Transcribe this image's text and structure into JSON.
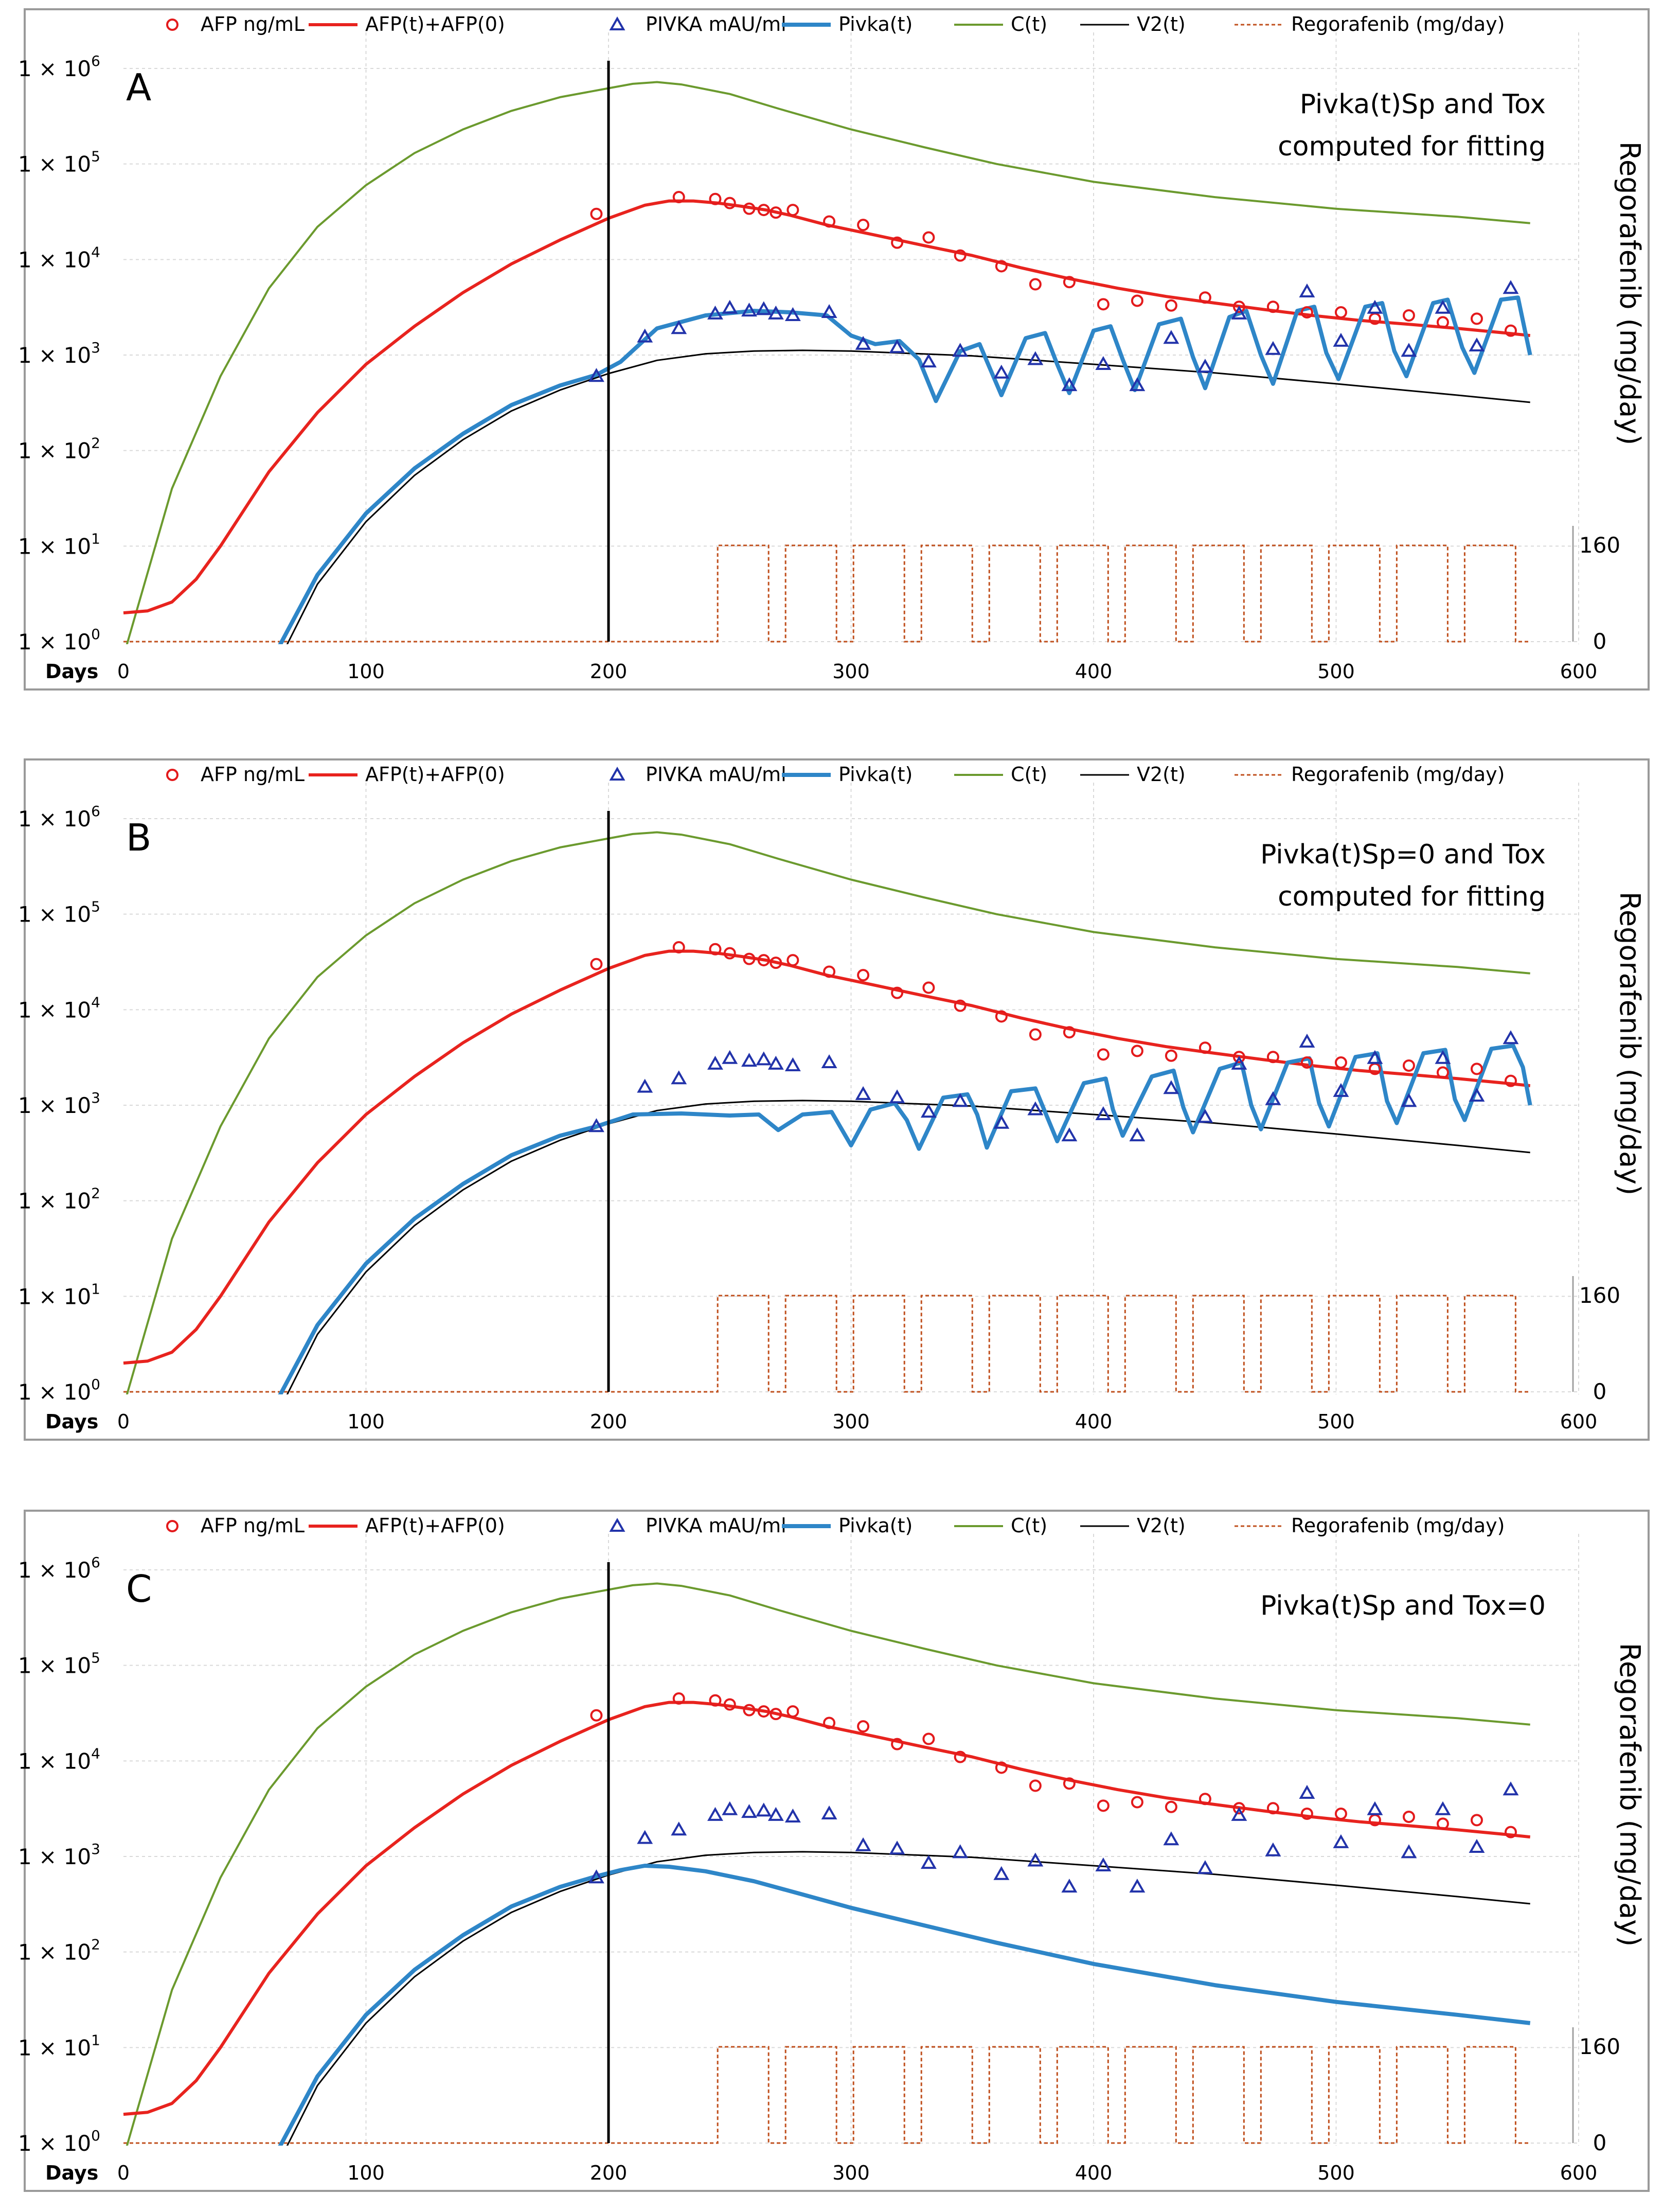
{
  "colors": {
    "afp_obs": "#e31a1c",
    "afp_fit": "#e8231e",
    "pivka_obs": "#2233aa",
    "pivka_fit": "#2e86c8",
    "C": "#6b9a2e",
    "V2": "#000000",
    "regorafenib": "#c0501e"
  },
  "chart_data": [
    {
      "panel": "A",
      "type": "line",
      "annotation": [
        "Pivka(t)Sp and Tox",
        "computed for fitting"
      ],
      "xlabel": "Days",
      "xlim": [
        0,
        600
      ],
      "xticks": [
        "0",
        "100",
        "200",
        "300",
        "400",
        "500",
        "600"
      ],
      "ylim_log": [
        1,
        1000000
      ],
      "yticks": [
        "1 × 10",
        "1 × 10",
        "1 × 10",
        "1 × 10",
        "1 × 10",
        "1 × 10",
        "1 × 10"
      ],
      "ytick_exponents": [
        "0",
        "1",
        "2",
        "3",
        "4",
        "5",
        "6"
      ],
      "y2label": "Regorafenib (mg/day)",
      "y2ticks": [
        "0",
        "160"
      ],
      "treatment_start_day": 200,
      "legend": [
        "AFP ng/mL",
        "AFP(t)+AFP(0)",
        "PIVKA mAU/ml",
        "Pivka(t)",
        "C(t)",
        "V2(t)",
        "Regorafenib (mg/day)"
      ],
      "series": {
        "afp_obs": {
          "x": [
            195,
            229,
            244,
            250,
            258,
            264,
            269,
            276,
            291,
            305,
            319,
            332,
            345,
            362,
            376,
            390,
            404,
            418,
            432,
            446,
            460,
            474,
            488,
            502,
            516,
            530,
            544,
            558,
            572
          ],
          "y": [
            30000,
            45000,
            43000,
            39000,
            34000,
            33000,
            31000,
            33000,
            25000,
            23000,
            15000,
            17000,
            11000,
            8500,
            5500,
            5800,
            3400,
            3700,
            3300,
            4000,
            3200,
            3200,
            2800,
            2800,
            2400,
            2600,
            2200,
            2400,
            1800
          ]
        },
        "afp_fit": {
          "x": [
            0,
            10,
            20,
            30,
            40,
            60,
            80,
            100,
            120,
            140,
            160,
            180,
            200,
            215,
            225,
            235,
            245,
            255,
            265,
            275,
            290,
            310,
            330,
            350,
            370,
            390,
            410,
            430,
            450,
            470,
            490,
            510,
            530,
            550,
            570,
            580
          ],
          "y": [
            2,
            2.1,
            2.6,
            4.5,
            10,
            60,
            250,
            800,
            2000,
            4500,
            9000,
            16000,
            27000,
            37000,
            41000,
            41000,
            39000,
            36000,
            33000,
            29000,
            23000,
            18000,
            14000,
            11000,
            8200,
            6300,
            5000,
            4100,
            3500,
            3000,
            2600,
            2300,
            2100,
            1900,
            1700,
            1600
          ]
        },
        "pivka_obs": {
          "x": [
            195,
            215,
            229,
            244,
            250,
            258,
            264,
            269,
            276,
            291
          ],
          "y": [
            600,
            1550,
            1900,
            2700,
            3100,
            2900,
            3000,
            2700,
            2600,
            2800
          ]
        },
        "pivka_obs_late_A": {
          "x": [
            305,
            319,
            332,
            345,
            362,
            376,
            390,
            404,
            418,
            432,
            446,
            460,
            474,
            488,
            502,
            516,
            530,
            544,
            558,
            572
          ],
          "y": [
            1300,
            1200,
            850,
            1100,
            650,
            900,
            480,
            800,
            480,
            1500,
            750,
            2700,
            1150,
            4600,
            1400,
            3100,
            1100,
            3100,
            1250,
            5000
          ]
        },
        "C": {
          "x": [
            0,
            20,
            40,
            60,
            80,
            100,
            120,
            140,
            160,
            180,
            200,
            210,
            220,
            230,
            250,
            270,
            300,
            330,
            360,
            400,
            450,
            500,
            550,
            580
          ],
          "y": [
            0.7,
            40,
            600,
            5000,
            22000,
            60000,
            130000,
            230000,
            360000,
            500000,
            620000,
            690000,
            720000,
            680000,
            540000,
            380000,
            230000,
            150000,
            100000,
            65000,
            45000,
            34000,
            28000,
            24000
          ]
        },
        "V2": {
          "x": [
            65,
            80,
            100,
            120,
            140,
            160,
            180,
            200,
            220,
            240,
            260,
            280,
            300,
            350,
            400,
            450,
            500,
            550,
            580
          ],
          "y": [
            0.7,
            4,
            18,
            55,
            130,
            260,
            430,
            640,
            880,
            1030,
            1100,
            1120,
            1100,
            980,
            800,
            650,
            500,
            380,
            320
          ]
        },
        "pivka_fit": {
          "x": [
            62,
            80,
            100,
            120,
            140,
            160,
            180,
            195,
            205,
            220,
            240,
            260,
            275,
            290,
            300,
            310,
            320,
            328,
            335,
            345,
            353,
            357,
            362,
            372,
            380,
            385,
            390,
            400,
            407,
            412,
            417,
            427,
            436,
            441,
            446,
            456,
            463,
            469,
            474,
            484,
            491,
            496,
            501,
            512,
            519,
            524,
            529,
            540,
            546,
            552,
            557,
            568,
            575,
            580
          ],
          "y": [
            0.7,
            5,
            22,
            65,
            150,
            300,
            480,
            620,
            850,
            1900,
            2600,
            2900,
            2800,
            2600,
            1600,
            1300,
            1400,
            900,
            330,
            1100,
            1300,
            750,
            380,
            1500,
            1700,
            800,
            400,
            1800,
            2000,
            900,
            430,
            2100,
            2400,
            950,
            450,
            2500,
            2900,
            1000,
            500,
            2900,
            3200,
            1050,
            560,
            3200,
            3500,
            1100,
            600,
            3500,
            3800,
            1200,
            650,
            3800,
            4000,
            1000
          ]
        },
        "regorafenib_on_periods": [
          [
            245,
            266
          ],
          [
            273,
            294
          ],
          [
            301,
            322
          ],
          [
            329,
            350
          ],
          [
            357,
            378
          ],
          [
            385,
            406
          ],
          [
            413,
            434
          ],
          [
            441,
            462
          ],
          [
            469,
            490
          ],
          [
            497,
            518
          ],
          [
            525,
            546
          ],
          [
            553,
            574
          ]
        ]
      }
    },
    {
      "panel": "B",
      "type": "line",
      "annotation": [
        "Pivka(t)Sp=0 and Tox",
        "computed for fitting"
      ],
      "xlabel": "Days",
      "xlim": [
        0,
        600
      ],
      "xticks": [
        "0",
        "100",
        "200",
        "300",
        "400",
        "500",
        "600"
      ],
      "ylim_log": [
        1,
        1000000
      ],
      "yticks": [
        "1 × 10",
        "1 × 10",
        "1 × 10",
        "1 × 10",
        "1 × 10",
        "1 × 10",
        "1 × 10"
      ],
      "ytick_exponents": [
        "0",
        "1",
        "2",
        "3",
        "4",
        "5",
        "6"
      ],
      "y2label": "Regorafenib (mg/day)",
      "y2ticks": [
        "0",
        "160"
      ],
      "treatment_start_day": 200,
      "legend": [
        "AFP ng/mL",
        "AFP(t)+AFP(0)",
        "PIVKA mAU/ml",
        "Pivka(t)",
        "C(t)",
        "V2(t)",
        "Regorafenib (mg/day)"
      ],
      "series": {
        "pivka_fit": {
          "x": [
            62,
            80,
            100,
            120,
            140,
            160,
            180,
            195,
            210,
            230,
            250,
            262,
            270,
            280,
            292,
            300,
            308,
            318,
            323,
            328,
            338,
            348,
            352,
            356,
            366,
            376,
            380,
            385,
            396,
            405,
            408,
            412,
            424,
            433,
            437,
            441,
            452,
            461,
            465,
            469,
            480,
            489,
            493,
            497,
            508,
            517,
            521,
            525,
            536,
            545,
            549,
            553,
            564,
            573,
            577,
            580
          ],
          "y": [
            0.7,
            5,
            22,
            65,
            150,
            300,
            480,
            600,
            800,
            820,
            780,
            800,
            550,
            800,
            850,
            380,
            900,
            1050,
            700,
            350,
            1200,
            1300,
            800,
            360,
            1400,
            1500,
            850,
            420,
            1700,
            1900,
            900,
            480,
            2000,
            2300,
            950,
            520,
            2400,
            2800,
            1000,
            560,
            2800,
            3100,
            1050,
            600,
            3200,
            3500,
            1100,
            650,
            3500,
            3800,
            1150,
            700,
            3900,
            4200,
            2500,
            1000
          ]
        }
      }
    },
    {
      "panel": "C",
      "type": "line",
      "annotation": [
        "Pivka(t)Sp and Tox=0"
      ],
      "xlabel": "Days",
      "xlim": [
        0,
        600
      ],
      "xticks": [
        "0",
        "100",
        "200",
        "300",
        "400",
        "500",
        "600"
      ],
      "ylim_log": [
        1,
        1000000
      ],
      "yticks": [
        "1 × 10",
        "1 × 10",
        "1 × 10",
        "1 × 10",
        "1 × 10",
        "1 × 10",
        "1 × 10"
      ],
      "ytick_exponents": [
        "0",
        "1",
        "2",
        "3",
        "4",
        "5",
        "6"
      ],
      "y2label": "Regorafenib (mg/day)",
      "y2ticks": [
        "0",
        "160"
      ],
      "treatment_start_day": 200,
      "legend": [
        "AFP ng/mL",
        "AFP(t)+AFP(0)",
        "PIVKA mAU/ml",
        "Pivka(t)",
        "C(t)",
        "V2(t)",
        "Regorafenib (mg/day)"
      ],
      "series": {
        "pivka_fit": {
          "x": [
            62,
            80,
            100,
            120,
            140,
            160,
            180,
            195,
            205,
            215,
            225,
            240,
            260,
            280,
            300,
            330,
            360,
            400,
            450,
            500,
            550,
            580
          ],
          "y": [
            0.7,
            5,
            22,
            65,
            150,
            300,
            480,
            620,
            720,
            800,
            780,
            700,
            550,
            400,
            290,
            190,
            125,
            75,
            45,
            30,
            22,
            18
          ]
        }
      }
    }
  ]
}
